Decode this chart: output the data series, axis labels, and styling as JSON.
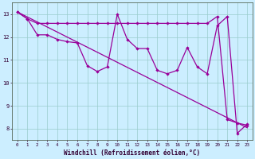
{
  "xlabel": "Windchill (Refroidissement éolien,°C)",
  "bg_color": "#cceeff",
  "plot_bg": "#cceeff",
  "line_color": "#990099",
  "grid_color": "#99cccc",
  "ylim": [
    7.5,
    13.5
  ],
  "xlim": [
    -0.5,
    23.5
  ],
  "yticks": [
    8,
    9,
    10,
    11,
    12,
    13
  ],
  "x": [
    0,
    1,
    2,
    3,
    4,
    5,
    6,
    7,
    8,
    9,
    10,
    11,
    12,
    13,
    14,
    15,
    16,
    17,
    18,
    19,
    20,
    21,
    22,
    23
  ],
  "diag_y": [
    13.1,
    12.88,
    12.66,
    12.44,
    12.22,
    12.0,
    11.78,
    11.56,
    11.34,
    11.12,
    10.9,
    10.68,
    10.46,
    10.24,
    10.02,
    9.8,
    9.58,
    9.36,
    9.14,
    8.92,
    8.7,
    8.48,
    8.26,
    8.04
  ],
  "upper_y": [
    13.1,
    12.8,
    12.6,
    12.6,
    12.6,
    12.6,
    12.6,
    12.6,
    12.6,
    12.6,
    12.6,
    12.6,
    12.6,
    12.6,
    12.6,
    12.6,
    12.6,
    12.6,
    12.6,
    12.6,
    12.9,
    8.4,
    8.25,
    8.15
  ],
  "zigzag_y": [
    13.1,
    12.8,
    12.1,
    12.1,
    11.9,
    11.8,
    11.75,
    10.75,
    10.5,
    10.7,
    13.0,
    11.9,
    11.5,
    11.5,
    10.55,
    10.4,
    10.55,
    11.55,
    10.7,
    10.4,
    12.5,
    12.9,
    7.8,
    8.2
  ]
}
